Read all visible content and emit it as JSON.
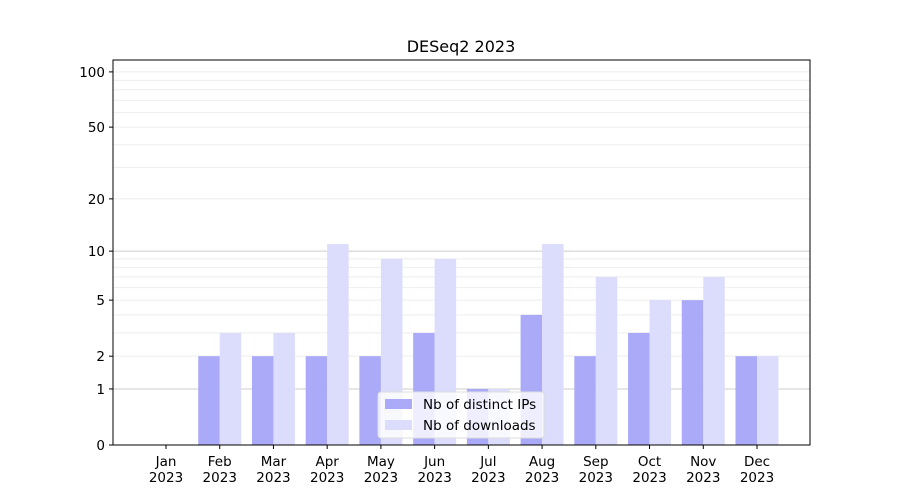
{
  "chart_data": {
    "type": "bar",
    "title": "DESeq2 2023",
    "xlabel": "",
    "ylabel": "",
    "yscale": "log10(1+y)",
    "ylim": [
      0,
      116
    ],
    "yticks": [
      0,
      1,
      2,
      5,
      10,
      20,
      50,
      100
    ],
    "minor_grid": [
      3,
      4,
      6,
      7,
      8,
      9,
      30,
      40,
      60,
      70,
      80,
      90
    ],
    "categories": [
      "Jan\n2023",
      "Feb\n2023",
      "Mar\n2023",
      "Apr\n2023",
      "May\n2023",
      "Jun\n2023",
      "Jul\n2023",
      "Aug\n2023",
      "Sep\n2023",
      "Oct\n2023",
      "Nov\n2023",
      "Dec\n2023"
    ],
    "series": [
      {
        "name": "Nb of distinct IPs",
        "color": "#aaaaf8",
        "values": [
          0,
          2,
          2,
          2,
          2,
          3,
          1,
          4,
          2,
          3,
          5,
          2
        ]
      },
      {
        "name": "Nb of downloads",
        "color": "#dcdcfc",
        "values": [
          0,
          3,
          3,
          11,
          9,
          9,
          1,
          11,
          7,
          5,
          7,
          2
        ]
      }
    ],
    "legend": "bottom-center",
    "grid": true
  }
}
